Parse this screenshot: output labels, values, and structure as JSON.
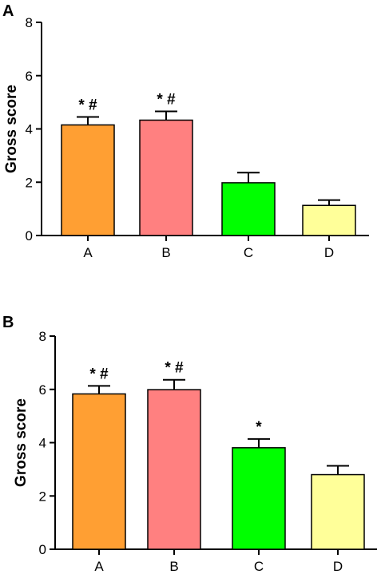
{
  "chart_data": [
    {
      "type": "bar",
      "panel_label": "A",
      "categories": [
        "A",
        "B",
        "C",
        "D"
      ],
      "values": [
        4.15,
        4.33,
        1.98,
        1.13
      ],
      "errors": [
        0.3,
        0.33,
        0.38,
        0.2
      ],
      "annotations": [
        "*#",
        "*#",
        "",
        ""
      ],
      "colors": [
        "#ff9f33",
        "#ff8080",
        "#00ff00",
        "#ffff99"
      ],
      "ylabel": "Gross score",
      "ylim": [
        0,
        8
      ],
      "yticks": [
        "0",
        "2",
        "4",
        "6",
        "8"
      ],
      "grid": false
    },
    {
      "type": "bar",
      "panel_label": "B",
      "categories": [
        "A",
        "B",
        "C",
        "D"
      ],
      "values": [
        5.83,
        5.99,
        3.81,
        2.8
      ],
      "errors": [
        0.3,
        0.37,
        0.33,
        0.33
      ],
      "annotations": [
        "*#",
        "*#",
        "*",
        ""
      ],
      "colors": [
        "#ff9f33",
        "#ff8080",
        "#00ff00",
        "#ffff99"
      ],
      "ylabel": "Gross score",
      "ylim": [
        0,
        8
      ],
      "yticks": [
        "0",
        "2",
        "4",
        "6",
        "8"
      ],
      "grid": false
    }
  ]
}
